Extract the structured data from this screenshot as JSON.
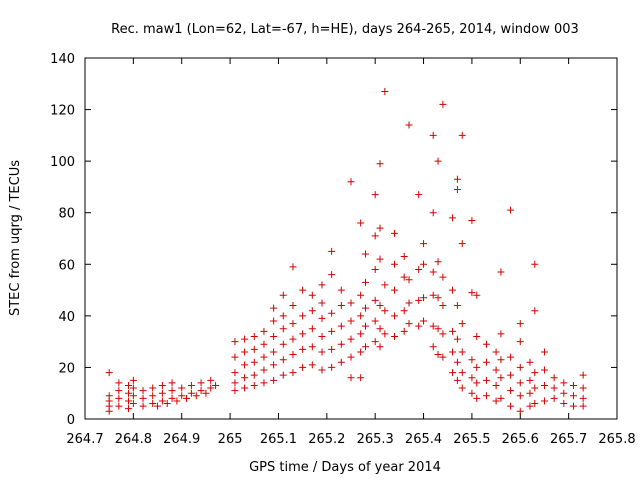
{
  "chart_data": {
    "type": "scatter",
    "title": "Rec. maw1 (Lon=62, Lat=-67, h=HE), days 264-265, 2014, window 003",
    "xlabel": "GPS time / Days of year 2014",
    "ylabel": "STEC from uqrg / TECUs",
    "xlim": [
      264.7,
      265.8
    ],
    "ylim": [
      0,
      140
    ],
    "xticks": [
      "264.7",
      "264.8",
      "264.9",
      "265",
      "265.1",
      "265.2",
      "265.3",
      "265.4",
      "265.5",
      "265.6",
      "265.7",
      "265.8"
    ],
    "yticks": [
      "0",
      "20",
      "40",
      "60",
      "80",
      "100",
      "120",
      "140"
    ],
    "grid": false,
    "marker": "+",
    "color": "#d40000",
    "series": [
      {
        "points": [
          [
            264.75,
            3
          ],
          [
            264.75,
            5
          ],
          [
            264.75,
            7
          ],
          [
            264.75,
            9
          ],
          [
            264.75,
            18
          ],
          [
            264.77,
            5
          ],
          [
            264.77,
            8
          ],
          [
            264.77,
            11
          ],
          [
            264.77,
            14
          ],
          [
            264.79,
            4
          ],
          [
            264.79,
            7
          ],
          [
            264.79,
            10
          ],
          [
            264.79,
            13
          ],
          [
            264.8,
            6
          ],
          [
            264.8,
            9
          ],
          [
            264.8,
            12
          ],
          [
            264.8,
            15
          ],
          [
            264.82,
            5
          ],
          [
            264.82,
            8
          ],
          [
            264.82,
            11
          ],
          [
            264.84,
            6
          ],
          [
            264.84,
            9
          ],
          [
            264.84,
            12
          ],
          [
            264.86,
            7
          ],
          [
            264.86,
            10
          ],
          [
            264.86,
            13
          ],
          [
            264.88,
            8
          ],
          [
            264.88,
            11
          ],
          [
            264.88,
            14
          ],
          [
            264.9,
            9
          ],
          [
            264.9,
            12
          ],
          [
            264.92,
            10
          ],
          [
            264.92,
            13
          ],
          [
            264.94,
            11
          ],
          [
            264.94,
            14
          ],
          [
            264.96,
            12
          ],
          [
            264.96,
            15
          ],
          [
            264.97,
            13
          ],
          [
            264.85,
            5
          ],
          [
            264.87,
            6
          ],
          [
            264.89,
            7
          ],
          [
            264.91,
            8
          ],
          [
            264.93,
            9
          ],
          [
            264.95,
            10
          ],
          [
            265.01,
            11
          ],
          [
            265.01,
            14
          ],
          [
            265.01,
            18
          ],
          [
            265.01,
            24
          ],
          [
            265.01,
            30
          ],
          [
            265.03,
            12
          ],
          [
            265.03,
            16
          ],
          [
            265.03,
            21
          ],
          [
            265.03,
            26
          ],
          [
            265.03,
            31
          ],
          [
            265.05,
            13
          ],
          [
            265.05,
            17
          ],
          [
            265.05,
            22
          ],
          [
            265.05,
            27
          ],
          [
            265.05,
            32
          ],
          [
            265.07,
            14
          ],
          [
            265.07,
            19
          ],
          [
            265.07,
            24
          ],
          [
            265.07,
            29
          ],
          [
            265.07,
            34
          ],
          [
            265.09,
            15
          ],
          [
            265.09,
            21
          ],
          [
            265.09,
            26
          ],
          [
            265.09,
            32
          ],
          [
            265.09,
            38
          ],
          [
            265.09,
            43
          ],
          [
            265.11,
            17
          ],
          [
            265.11,
            23
          ],
          [
            265.11,
            29
          ],
          [
            265.11,
            35
          ],
          [
            265.11,
            40
          ],
          [
            265.11,
            48
          ],
          [
            265.13,
            18
          ],
          [
            265.13,
            25
          ],
          [
            265.13,
            31
          ],
          [
            265.13,
            37
          ],
          [
            265.13,
            44
          ],
          [
            265.13,
            59
          ],
          [
            265.15,
            20
          ],
          [
            265.15,
            27
          ],
          [
            265.15,
            33
          ],
          [
            265.15,
            40
          ],
          [
            265.15,
            50
          ],
          [
            265.17,
            21
          ],
          [
            265.17,
            28
          ],
          [
            265.17,
            35
          ],
          [
            265.17,
            42
          ],
          [
            265.17,
            48
          ],
          [
            265.19,
            19
          ],
          [
            265.19,
            26
          ],
          [
            265.19,
            32
          ],
          [
            265.19,
            39
          ],
          [
            265.19,
            45
          ],
          [
            265.19,
            52
          ],
          [
            265.21,
            20
          ],
          [
            265.21,
            27
          ],
          [
            265.21,
            34
          ],
          [
            265.21,
            41
          ],
          [
            265.21,
            56
          ],
          [
            265.21,
            65
          ],
          [
            265.23,
            22
          ],
          [
            265.23,
            29
          ],
          [
            265.23,
            36
          ],
          [
            265.23,
            44
          ],
          [
            265.23,
            50
          ],
          [
            265.25,
            16
          ],
          [
            265.25,
            24
          ],
          [
            265.25,
            31
          ],
          [
            265.25,
            38
          ],
          [
            265.25,
            45
          ],
          [
            265.25,
            92
          ],
          [
            265.27,
            16
          ],
          [
            265.27,
            26
          ],
          [
            265.27,
            33
          ],
          [
            265.27,
            40
          ],
          [
            265.27,
            48
          ],
          [
            265.27,
            76
          ],
          [
            265.28,
            28
          ],
          [
            265.28,
            36
          ],
          [
            265.28,
            43
          ],
          [
            265.28,
            53
          ],
          [
            265.28,
            64
          ],
          [
            265.3,
            30
          ],
          [
            265.3,
            38
          ],
          [
            265.3,
            46
          ],
          [
            265.3,
            58
          ],
          [
            265.3,
            71
          ],
          [
            265.3,
            87
          ],
          [
            265.31,
            28
          ],
          [
            265.31,
            35
          ],
          [
            265.31,
            44
          ],
          [
            265.31,
            62
          ],
          [
            265.31,
            74
          ],
          [
            265.31,
            99
          ],
          [
            265.32,
            33
          ],
          [
            265.32,
            42
          ],
          [
            265.32,
            52
          ],
          [
            265.32,
            127
          ],
          [
            265.34,
            32
          ],
          [
            265.34,
            40
          ],
          [
            265.34,
            50
          ],
          [
            265.34,
            60
          ],
          [
            265.34,
            72
          ],
          [
            265.36,
            34
          ],
          [
            265.36,
            42
          ],
          [
            265.36,
            55
          ],
          [
            265.36,
            63
          ],
          [
            265.37,
            37
          ],
          [
            265.37,
            45
          ],
          [
            265.37,
            54
          ],
          [
            265.37,
            114
          ],
          [
            265.39,
            36
          ],
          [
            265.39,
            46
          ],
          [
            265.39,
            58
          ],
          [
            265.39,
            87
          ],
          [
            265.4,
            38
          ],
          [
            265.4,
            47
          ],
          [
            265.4,
            60
          ],
          [
            265.4,
            68
          ],
          [
            265.42,
            28
          ],
          [
            265.42,
            36
          ],
          [
            265.42,
            48
          ],
          [
            265.42,
            57
          ],
          [
            265.42,
            80
          ],
          [
            265.42,
            110
          ],
          [
            265.43,
            25
          ],
          [
            265.43,
            35
          ],
          [
            265.43,
            47
          ],
          [
            265.43,
            61
          ],
          [
            265.43,
            100
          ],
          [
            265.44,
            24
          ],
          [
            265.44,
            33
          ],
          [
            265.44,
            44
          ],
          [
            265.44,
            55
          ],
          [
            265.44,
            122
          ],
          [
            265.46,
            18
          ],
          [
            265.46,
            26
          ],
          [
            265.46,
            34
          ],
          [
            265.46,
            50
          ],
          [
            265.46,
            78
          ],
          [
            265.47,
            15
          ],
          [
            265.47,
            22
          ],
          [
            265.47,
            31
          ],
          [
            265.47,
            44
          ],
          [
            265.47,
            89
          ],
          [
            265.47,
            93
          ],
          [
            265.48,
            12
          ],
          [
            265.48,
            18
          ],
          [
            265.48,
            26
          ],
          [
            265.48,
            37
          ],
          [
            265.48,
            68
          ],
          [
            265.48,
            110
          ],
          [
            265.5,
            10
          ],
          [
            265.5,
            16
          ],
          [
            265.5,
            23
          ],
          [
            265.5,
            49
          ],
          [
            265.5,
            77
          ],
          [
            265.51,
            8
          ],
          [
            265.51,
            14
          ],
          [
            265.51,
            20
          ],
          [
            265.51,
            32
          ],
          [
            265.51,
            48
          ],
          [
            265.53,
            9
          ],
          [
            265.53,
            15
          ],
          [
            265.53,
            22
          ],
          [
            265.53,
            29
          ],
          [
            265.55,
            7
          ],
          [
            265.55,
            13
          ],
          [
            265.55,
            19
          ],
          [
            265.55,
            26
          ],
          [
            265.56,
            8
          ],
          [
            265.56,
            16
          ],
          [
            265.56,
            23
          ],
          [
            265.56,
            33
          ],
          [
            265.56,
            57
          ],
          [
            265.58,
            5
          ],
          [
            265.58,
            11
          ],
          [
            265.58,
            17
          ],
          [
            265.58,
            24
          ],
          [
            265.58,
            81
          ],
          [
            265.6,
            3
          ],
          [
            265.6,
            9
          ],
          [
            265.6,
            14
          ],
          [
            265.6,
            20
          ],
          [
            265.6,
            30
          ],
          [
            265.6,
            37
          ],
          [
            265.62,
            5
          ],
          [
            265.62,
            10
          ],
          [
            265.62,
            15
          ],
          [
            265.62,
            22
          ],
          [
            265.63,
            6
          ],
          [
            265.63,
            12
          ],
          [
            265.63,
            18
          ],
          [
            265.63,
            42
          ],
          [
            265.63,
            60
          ],
          [
            265.65,
            7
          ],
          [
            265.65,
            13
          ],
          [
            265.65,
            19
          ],
          [
            265.65,
            26
          ],
          [
            265.67,
            8
          ],
          [
            265.67,
            12
          ],
          [
            265.67,
            16
          ],
          [
            265.69,
            6
          ],
          [
            265.69,
            10
          ],
          [
            265.69,
            14
          ],
          [
            265.71,
            5
          ],
          [
            265.71,
            9
          ],
          [
            265.71,
            13
          ],
          [
            265.73,
            5
          ],
          [
            265.73,
            8
          ],
          [
            265.73,
            12
          ],
          [
            265.73,
            17
          ]
        ]
      }
    ]
  }
}
